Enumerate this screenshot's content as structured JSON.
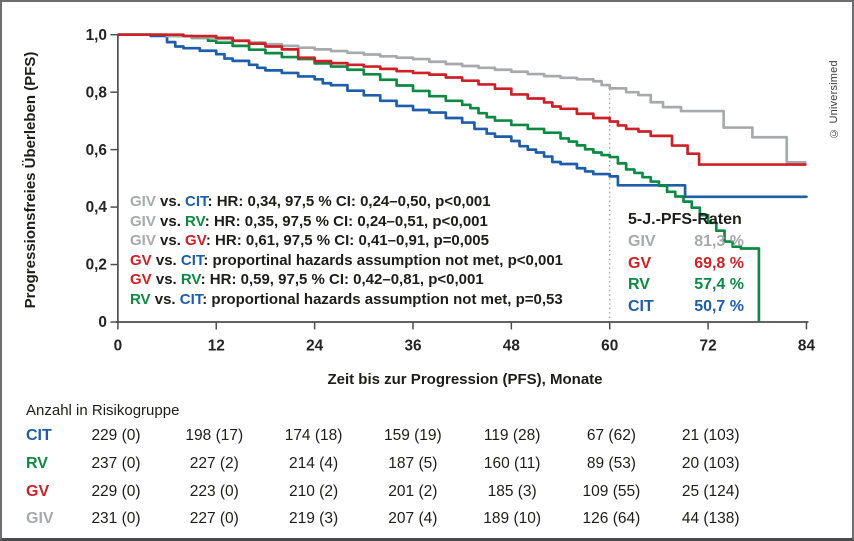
{
  "palette": {
    "giv": "#a7a9ac",
    "gv": "#cc2127",
    "rv": "#0c8a43",
    "cit": "#1d5da9",
    "text": "#1d1d1b",
    "axis": "#4d4d4f",
    "refline": "#9b9b9b"
  },
  "copyright": "© Universimed",
  "chart_data": {
    "type": "line",
    "subtype": "kaplan-meier-step",
    "xlabel": "Zeit bis zur Progression (PFS), Monate",
    "ylabel": "Progressionsfreies Überleben (PFS)",
    "xlim": [
      0,
      84
    ],
    "ylim": [
      0,
      1
    ],
    "grid": false,
    "x_ticks": [
      0,
      12,
      24,
      36,
      48,
      60,
      72,
      84
    ],
    "x_tick_labels": [
      "0",
      "12",
      "24",
      "36",
      "48",
      "60",
      "72",
      "84"
    ],
    "y_ticks": [
      1.0,
      0.8,
      0.6,
      0.4,
      0.2,
      0
    ],
    "y_tick_labels": [
      "1,0",
      "0,8",
      "0,6",
      "0,4",
      "0,2",
      "0"
    ],
    "reference_line_x": 60,
    "series": [
      {
        "name": "CIT",
        "color": "cit",
        "points": [
          [
            0,
            1
          ],
          [
            4,
            0.996
          ],
          [
            6,
            0.974
          ],
          [
            7,
            0.959
          ],
          [
            8,
            0.953
          ],
          [
            10,
            0.944
          ],
          [
            12,
            0.932
          ],
          [
            13,
            0.917
          ],
          [
            14,
            0.909
          ],
          [
            16,
            0.895
          ],
          [
            17,
            0.885
          ],
          [
            18,
            0.876
          ],
          [
            20,
            0.867
          ],
          [
            22,
            0.855
          ],
          [
            24,
            0.845
          ],
          [
            25,
            0.831
          ],
          [
            26,
            0.824
          ],
          [
            28,
            0.805
          ],
          [
            30,
            0.789
          ],
          [
            32,
            0.77
          ],
          [
            34,
            0.752
          ],
          [
            36,
            0.738
          ],
          [
            38,
            0.729
          ],
          [
            40,
            0.71
          ],
          [
            42,
            0.694
          ],
          [
            43.5,
            0.672
          ],
          [
            45,
            0.656
          ],
          [
            46,
            0.645
          ],
          [
            48,
            0.63
          ],
          [
            49,
            0.612
          ],
          [
            50,
            0.6
          ],
          [
            51,
            0.59
          ],
          [
            52,
            0.576
          ],
          [
            53,
            0.557
          ],
          [
            54,
            0.55
          ],
          [
            56,
            0.535
          ],
          [
            57,
            0.524
          ],
          [
            58,
            0.515
          ],
          [
            60,
            0.507
          ],
          [
            61,
            0.476
          ],
          [
            69.2,
            0.436
          ],
          [
            84,
            0.433
          ]
        ]
      },
      {
        "name": "RV",
        "color": "rv",
        "points": [
          [
            0,
            1
          ],
          [
            6,
            0.996
          ],
          [
            9,
            0.989
          ],
          [
            11,
            0.979
          ],
          [
            12,
            0.972
          ],
          [
            14,
            0.961
          ],
          [
            16,
            0.948
          ],
          [
            18,
            0.936
          ],
          [
            20,
            0.922
          ],
          [
            22,
            0.915
          ],
          [
            24,
            0.9
          ],
          [
            26,
            0.889
          ],
          [
            28,
            0.878
          ],
          [
            30,
            0.862
          ],
          [
            32,
            0.843
          ],
          [
            34,
            0.823
          ],
          [
            36,
            0.804
          ],
          [
            38,
            0.786
          ],
          [
            40,
            0.77
          ],
          [
            42,
            0.756
          ],
          [
            43,
            0.744
          ],
          [
            44,
            0.727
          ],
          [
            45,
            0.713
          ],
          [
            46,
            0.701
          ],
          [
            48,
            0.686
          ],
          [
            50,
            0.672
          ],
          [
            52,
            0.659
          ],
          [
            54,
            0.639
          ],
          [
            55,
            0.628
          ],
          [
            56,
            0.615
          ],
          [
            57,
            0.601
          ],
          [
            58,
            0.59
          ],
          [
            59,
            0.581
          ],
          [
            60,
            0.574
          ],
          [
            61,
            0.552
          ],
          [
            62,
            0.531
          ],
          [
            63,
            0.519
          ],
          [
            64,
            0.504
          ],
          [
            65,
            0.489
          ],
          [
            66,
            0.474
          ],
          [
            67,
            0.453
          ],
          [
            68,
            0.437
          ],
          [
            69,
            0.419
          ],
          [
            70,
            0.398
          ],
          [
            71,
            0.372
          ],
          [
            72,
            0.345
          ],
          [
            73,
            0.318
          ],
          [
            74,
            0.28
          ],
          [
            75,
            0.262
          ],
          [
            76,
            0.256
          ],
          [
            78.2,
            0.256
          ],
          [
            78.2,
            0
          ]
        ]
      },
      {
        "name": "GIV",
        "color": "giv",
        "points": [
          [
            0,
            1
          ],
          [
            6,
            0.995
          ],
          [
            9,
            0.99
          ],
          [
            12,
            0.985
          ],
          [
            14,
            0.979
          ],
          [
            16,
            0.973
          ],
          [
            18,
            0.967
          ],
          [
            20,
            0.961
          ],
          [
            22,
            0.955
          ],
          [
            24,
            0.949
          ],
          [
            26,
            0.943
          ],
          [
            28,
            0.937
          ],
          [
            30,
            0.931
          ],
          [
            32,
            0.925
          ],
          [
            34,
            0.92
          ],
          [
            36,
            0.915
          ],
          [
            38,
            0.906
          ],
          [
            40,
            0.898
          ],
          [
            42,
            0.891
          ],
          [
            44,
            0.885
          ],
          [
            46,
            0.878
          ],
          [
            48,
            0.871
          ],
          [
            50,
            0.863
          ],
          [
            52,
            0.856
          ],
          [
            54,
            0.85
          ],
          [
            56,
            0.845
          ],
          [
            58,
            0.838
          ],
          [
            59,
            0.825
          ],
          [
            60,
            0.813
          ],
          [
            62,
            0.8
          ],
          [
            63.5,
            0.79
          ],
          [
            65,
            0.765
          ],
          [
            66.5,
            0.748
          ],
          [
            68.7,
            0.734
          ],
          [
            73.9,
            0.677
          ],
          [
            77.4,
            0.643
          ],
          [
            81.6,
            0.556
          ],
          [
            84,
            0.556
          ]
        ]
      },
      {
        "name": "GV",
        "color": "gv",
        "points": [
          [
            0,
            1
          ],
          [
            8,
            0.995
          ],
          [
            12,
            0.989
          ],
          [
            14,
            0.979
          ],
          [
            16,
            0.969
          ],
          [
            18,
            0.959
          ],
          [
            20,
            0.949
          ],
          [
            22,
            0.92
          ],
          [
            24,
            0.908
          ],
          [
            26,
            0.901
          ],
          [
            28,
            0.895
          ],
          [
            30,
            0.889
          ],
          [
            32,
            0.881
          ],
          [
            34,
            0.873
          ],
          [
            36,
            0.867
          ],
          [
            38,
            0.861
          ],
          [
            40,
            0.851
          ],
          [
            42,
            0.84
          ],
          [
            44,
            0.827
          ],
          [
            46,
            0.812
          ],
          [
            48,
            0.792
          ],
          [
            50,
            0.778
          ],
          [
            52,
            0.764
          ],
          [
            53,
            0.75
          ],
          [
            54,
            0.742
          ],
          [
            56,
            0.725
          ],
          [
            58,
            0.71
          ],
          [
            60,
            0.698
          ],
          [
            61,
            0.684
          ],
          [
            62,
            0.672
          ],
          [
            63.5,
            0.663
          ],
          [
            65,
            0.648
          ],
          [
            67.6,
            0.614
          ],
          [
            69.5,
            0.586
          ],
          [
            70.9,
            0.548
          ],
          [
            84,
            0.548
          ]
        ]
      }
    ],
    "legend": {
      "title": "5-J.-PFS-Raten",
      "position": "inside-right",
      "entries": [
        {
          "label": "GIV",
          "value": "81,3 %",
          "color": "giv"
        },
        {
          "label": "GV",
          "value": "69,8 %",
          "color": "gv"
        },
        {
          "label": "RV",
          "value": "57,4 %",
          "color": "rv"
        },
        {
          "label": "CIT",
          "value": "50,7 %",
          "color": "cit"
        }
      ]
    },
    "annotations": [
      {
        "segments": [
          {
            "text": "GIV",
            "color": "giv"
          },
          {
            "text": " vs. ",
            "color": "text"
          },
          {
            "text": "CIT",
            "color": "cit"
          },
          {
            "text": ": HR: 0,34, 97,5 % CI: 0,24–0,50, p<0,001",
            "color": "text"
          }
        ]
      },
      {
        "segments": [
          {
            "text": "GIV",
            "color": "giv"
          },
          {
            "text": " vs. ",
            "color": "text"
          },
          {
            "text": "RV",
            "color": "rv"
          },
          {
            "text": ": HR: 0,35, 97,5 % CI: 0,24–0,51, p<0,001",
            "color": "text"
          }
        ]
      },
      {
        "segments": [
          {
            "text": "GIV",
            "color": "giv"
          },
          {
            "text": " vs. ",
            "color": "text"
          },
          {
            "text": "GV",
            "color": "gv"
          },
          {
            "text": ": HR: 0,61, 97,5 % CI: 0,41–0,91, p=0,005",
            "color": "text"
          }
        ]
      },
      {
        "segments": [
          {
            "text": "GV",
            "color": "gv"
          },
          {
            "text": " vs. ",
            "color": "text"
          },
          {
            "text": "CIT",
            "color": "cit"
          },
          {
            "text": ": proportinal hazards assumption not met, p<0,001",
            "color": "text"
          }
        ]
      },
      {
        "segments": [
          {
            "text": "GV",
            "color": "gv"
          },
          {
            "text": " vs. ",
            "color": "text"
          },
          {
            "text": "RV",
            "color": "rv"
          },
          {
            "text": ": HR: 0,59, 97,5 % CI: 0,42–0,81, p<0,001",
            "color": "text"
          }
        ]
      },
      {
        "segments": [
          {
            "text": "RV",
            "color": "rv"
          },
          {
            "text": " vs. ",
            "color": "text"
          },
          {
            "text": "CIT",
            "color": "cit"
          },
          {
            "text": ": proportional hazards assumption not met, p=0,53",
            "color": "text"
          }
        ]
      }
    ]
  },
  "risk_table": {
    "title": "Anzahl in Risikogruppe",
    "time_points": [
      0,
      12,
      24,
      36,
      48,
      60,
      72
    ],
    "rows": [
      {
        "label": "CIT",
        "color": "cit",
        "values": [
          "229 (0)",
          "198 (17)",
          "174 (18)",
          "159 (19)",
          "119 (28)",
          "67 (62)",
          "21 (103)"
        ]
      },
      {
        "label": "RV",
        "color": "rv",
        "values": [
          "237 (0)",
          "227 (2)",
          "214 (4)",
          "187 (5)",
          "160 (11)",
          "89 (53)",
          "20 (103)"
        ]
      },
      {
        "label": "GV",
        "color": "gv",
        "values": [
          "229 (0)",
          "223 (0)",
          "210 (2)",
          "201 (2)",
          "185 (3)",
          "109 (55)",
          "25 (124)"
        ]
      },
      {
        "label": "GIV",
        "color": "giv",
        "values": [
          "231 (0)",
          "227 (0)",
          "219 (3)",
          "207 (4)",
          "189 (10)",
          "126 (64)",
          "44 (138)"
        ]
      }
    ]
  }
}
